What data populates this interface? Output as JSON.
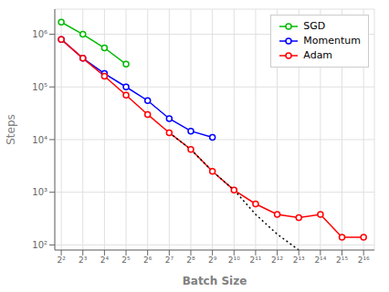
{
  "chart_data": {
    "type": "line",
    "xlabel": "Batch Size",
    "ylabel": "Steps",
    "log": true,
    "grid": true,
    "legend": "upper right",
    "x": [
      4,
      8,
      16,
      32,
      64,
      128,
      256,
      512,
      1024,
      2048,
      4096,
      8192,
      16384,
      32768,
      65536
    ],
    "xlim": [
      3.249009585424942,
      92681.90002368351
    ],
    "xticks": [
      {
        "value": 4,
        "label": "2²"
      },
      {
        "value": 8,
        "label": "2³"
      },
      {
        "value": 16,
        "label": "2⁴"
      },
      {
        "value": 32,
        "label": "2⁵"
      },
      {
        "value": 64,
        "label": "2⁶"
      },
      {
        "value": 128,
        "label": "2⁷"
      },
      {
        "value": 256,
        "label": "2⁸"
      },
      {
        "value": 512,
        "label": "2⁹"
      },
      {
        "value": 1024,
        "label": "2¹⁰"
      },
      {
        "value": 2048,
        "label": "2¹¹"
      },
      {
        "value": 4096,
        "label": "2¹²"
      },
      {
        "value": 8192,
        "label": "2¹³"
      },
      {
        "value": 16384,
        "label": "2¹⁴"
      },
      {
        "value": 32768,
        "label": "2¹⁵"
      },
      {
        "value": 65536,
        "label": "2¹⁶"
      }
    ],
    "ylim": [
      80,
      3000000
    ],
    "yticks": [
      {
        "value": 100,
        "label": "10²"
      },
      {
        "value": 1000,
        "label": "10³"
      },
      {
        "value": 10000,
        "label": "10⁴"
      },
      {
        "value": 100000,
        "label": "10⁵"
      },
      {
        "value": 1000000,
        "label": "10⁶"
      }
    ],
    "series": [
      {
        "name": "SGD",
        "color": "#00bb00",
        "marker": "circle",
        "line_style": "solid",
        "values": [
          1700000,
          1000000,
          550000,
          270000,
          null,
          null,
          null,
          null,
          null,
          null,
          null,
          null,
          null,
          null,
          null
        ]
      },
      {
        "name": "Momentum",
        "color": "#0000ff",
        "marker": "circle",
        "line_style": "solid",
        "values": [
          800000,
          350000,
          180000,
          100000,
          55000,
          25000,
          14500,
          11000,
          null,
          null,
          null,
          null,
          null,
          null,
          null
        ]
      },
      {
        "name": "Adam",
        "color": "#ff0000",
        "marker": "circle",
        "line_style": "solid",
        "values": [
          800000,
          350000,
          160000,
          70000,
          30000,
          13500,
          6500,
          2500,
          1100,
          600,
          380,
          330,
          380,
          140,
          140
        ]
      },
      {
        "color": "#000000",
        "marker": "none",
        "line_style": "dotted",
        "values": [
          null,
          null,
          null,
          null,
          null,
          13500,
          6500,
          2500,
          1100,
          380,
          160,
          80,
          null,
          null,
          null
        ]
      }
    ]
  }
}
